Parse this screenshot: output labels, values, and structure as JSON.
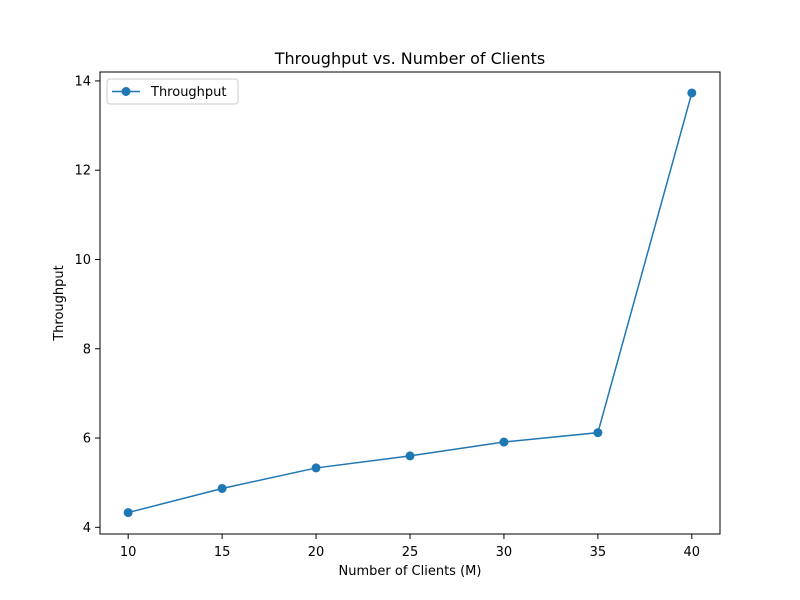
{
  "chart_data": {
    "type": "line",
    "title": "Throughput vs. Number of Clients",
    "xlabel": "Number of Clients (M)",
    "ylabel": "Throughput",
    "x": [
      10,
      15,
      20,
      25,
      30,
      35,
      40
    ],
    "series": [
      {
        "name": "Throughput",
        "values": [
          4.33,
          4.87,
          5.33,
          5.6,
          5.91,
          6.12,
          13.73
        ],
        "color": "#1f77b4",
        "marker": "circle"
      }
    ],
    "xlim": [
      8.5,
      41.5
    ],
    "ylim": [
      3.85,
      14.2
    ],
    "xticks": [
      10,
      15,
      20,
      25,
      30,
      35,
      40
    ],
    "yticks": [
      4,
      6,
      8,
      10,
      12,
      14
    ],
    "grid": false,
    "legend": "top-left"
  }
}
